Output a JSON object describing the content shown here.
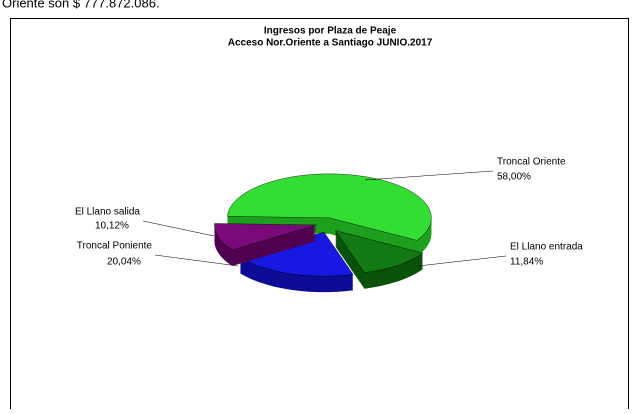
{
  "caption": "Oriente son $ 777.872.086.",
  "chart_data": {
    "type": "pie",
    "title": [
      "Ingresos por Plaza de Peaje",
      "Acceso Nor.Oriente a Santiago JUNIO.2017"
    ],
    "categories": [
      "Troncal Oriente",
      "El Llano entrada",
      "Troncal Poniente",
      "El Llano salida"
    ],
    "values": [
      58.0,
      11.84,
      20.04,
      10.12
    ],
    "value_labels": [
      "58,00%",
      "11,84%",
      "20,04%",
      "10,12%"
    ],
    "colors": [
      "#33dd33",
      "#137a13",
      "#1818e0",
      "#7a0a7a"
    ],
    "side_colors": [
      "#1f9f1f",
      "#0a520a",
      "#0c0c96",
      "#500050"
    ]
  }
}
